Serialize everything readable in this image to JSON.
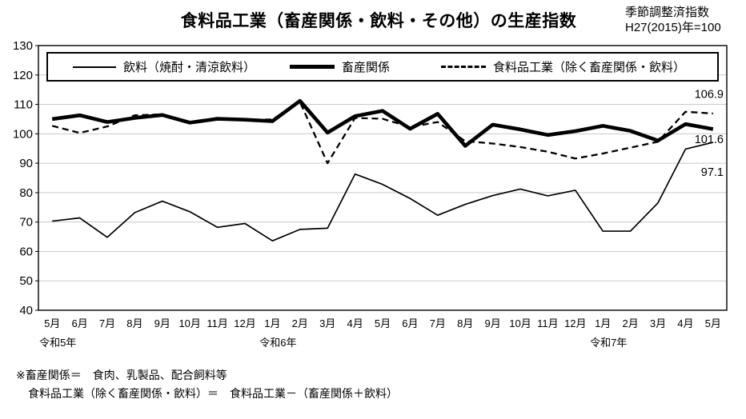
{
  "header": {
    "title": "食料品工業（畜産関係・飲料・その他）の生産指数",
    "note_line1": "季節調整済指数",
    "note_line2": "H27(2015)年=100"
  },
  "chart_data": {
    "type": "line",
    "title": "食料品工業（畜産関係・飲料・その他）の生産指数",
    "unit_note": "季節調整済指数 H27(2015)年=100",
    "categories": [
      "5月",
      "6月",
      "7月",
      "8月",
      "9月",
      "10月",
      "11月",
      "12月",
      "1月",
      "2月",
      "3月",
      "4月",
      "5月",
      "6月",
      "7月",
      "8月",
      "9月",
      "10月",
      "11月",
      "12月",
      "1月",
      "2月",
      "3月",
      "4月",
      "5月"
    ],
    "year_groups": [
      {
        "label": "令和5年",
        "start_index": 0
      },
      {
        "label": "令和6年",
        "start_index": 8
      },
      {
        "label": "令和7年",
        "start_index": 20
      }
    ],
    "ylim": [
      40,
      130
    ],
    "ytick_step": 10,
    "grid": "horizontal-light-gray",
    "legend_position": "top-inside-box",
    "series": [
      {
        "name": "飲料（焼酎・清涼飲料）",
        "line_style": "thin-solid",
        "values": [
          70.3,
          71.4,
          64.8,
          73.2,
          77.1,
          73.5,
          68.2,
          69.5,
          63.6,
          67.5,
          67.9,
          86.3,
          82.8,
          78.0,
          72.3,
          76.0,
          79.0,
          81.2,
          78.9,
          80.8,
          66.9,
          66.9,
          76.5,
          94.8,
          97.1
        ]
      },
      {
        "name": "畜産関係",
        "line_style": "thick-solid",
        "values": [
          105.0,
          106.3,
          104.0,
          105.4,
          106.4,
          103.8,
          105.1,
          104.8,
          104.3,
          111.2,
          100.4,
          106.0,
          107.8,
          101.7,
          106.8,
          95.9,
          103.1,
          101.5,
          99.6,
          100.9,
          102.7,
          101.0,
          97.7,
          103.3,
          101.6
        ]
      },
      {
        "name": "食料品工業（除く畜産関係・飲料）",
        "line_style": "dashed",
        "values": [
          102.7,
          100.3,
          102.5,
          106.3,
          106.6,
          103.7,
          105.4,
          104.7,
          104.9,
          110.8,
          90.0,
          105.4,
          105.1,
          102.3,
          104.0,
          97.5,
          96.7,
          95.5,
          93.9,
          91.6,
          93.3,
          95.3,
          97.3,
          107.5,
          106.9
        ]
      }
    ],
    "annotations": [
      {
        "text": "106.9",
        "series": "食料品工業（除く畜産関係・飲料）",
        "anchor_value": 113.5
      },
      {
        "text": "101.6",
        "series": "畜産関係",
        "anchor_value": 98.2
      },
      {
        "text": "97.1",
        "series": "飲料（焼酎・清涼飲料）",
        "anchor_value": 87.0
      }
    ]
  },
  "footnote": {
    "line1": "※畜産関係＝　食肉、乳製品、配合飼料等",
    "line2": "食料品工業（除く畜産関係・飲料）＝　食料品工業－（畜産関係＋飲料）"
  },
  "colors": {
    "line": "#000000",
    "grid": "#c9c9c9",
    "background": "#ffffff"
  }
}
